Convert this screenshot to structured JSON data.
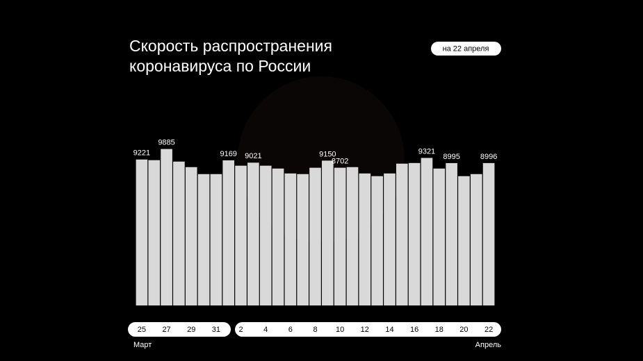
{
  "chart_data": {
    "type": "bar",
    "title": [
      "Скорость распространения",
      "коронавируса по России"
    ],
    "date_badge": "на 22 апреля",
    "months": [
      "Март",
      "Апрель"
    ],
    "categories": [
      "25",
      null,
      "27",
      null,
      "29",
      null,
      "31",
      null,
      "2",
      null,
      "4",
      null,
      "6",
      null,
      "8",
      null,
      "10",
      null,
      "12",
      null,
      "14",
      null,
      "16",
      null,
      "18",
      null,
      "20",
      null,
      "22"
    ],
    "values": [
      9221,
      9180,
      9885,
      9090,
      8740,
      8300,
      8300,
      9169,
      8830,
      9021,
      8830,
      8650,
      8340,
      8300,
      8700,
      9150,
      8702,
      8740,
      8340,
      8170,
      8340,
      8960,
      9000,
      9321,
      8650,
      8995,
      8170,
      8300,
      8996
    ],
    "value_labels": [
      "9221",
      null,
      "9885",
      null,
      null,
      null,
      null,
      "9169",
      null,
      "9021",
      null,
      null,
      null,
      null,
      null,
      "9150",
      "8702",
      null,
      null,
      null,
      null,
      null,
      null,
      "9321",
      null,
      "8995",
      null,
      null,
      "8996"
    ],
    "color": "#d9d9d9",
    "ylim": [
      0,
      10000
    ]
  }
}
